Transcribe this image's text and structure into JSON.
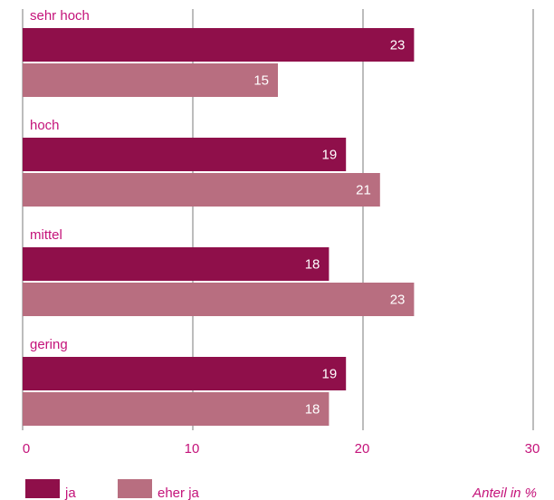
{
  "chart_data": {
    "type": "bar",
    "orientation": "horizontal",
    "categories": [
      "sehr hoch",
      "hoch",
      "mittel",
      "gering"
    ],
    "series": [
      {
        "name": "ja",
        "color": "#8f0f4a",
        "values": [
          23,
          19,
          18,
          19
        ]
      },
      {
        "name": "eher ja",
        "color": "#b86e80",
        "values": [
          15,
          21,
          23,
          18
        ]
      }
    ],
    "xlim": [
      0,
      30
    ],
    "xticks": [
      0,
      10,
      20,
      30
    ],
    "xlabel": "Anteil in %",
    "grid": true,
    "legend_position": "bottom-left",
    "colors": {
      "text": "#c4137a",
      "grid": "#a6a6a6",
      "axis": "#a6a6a6"
    }
  }
}
